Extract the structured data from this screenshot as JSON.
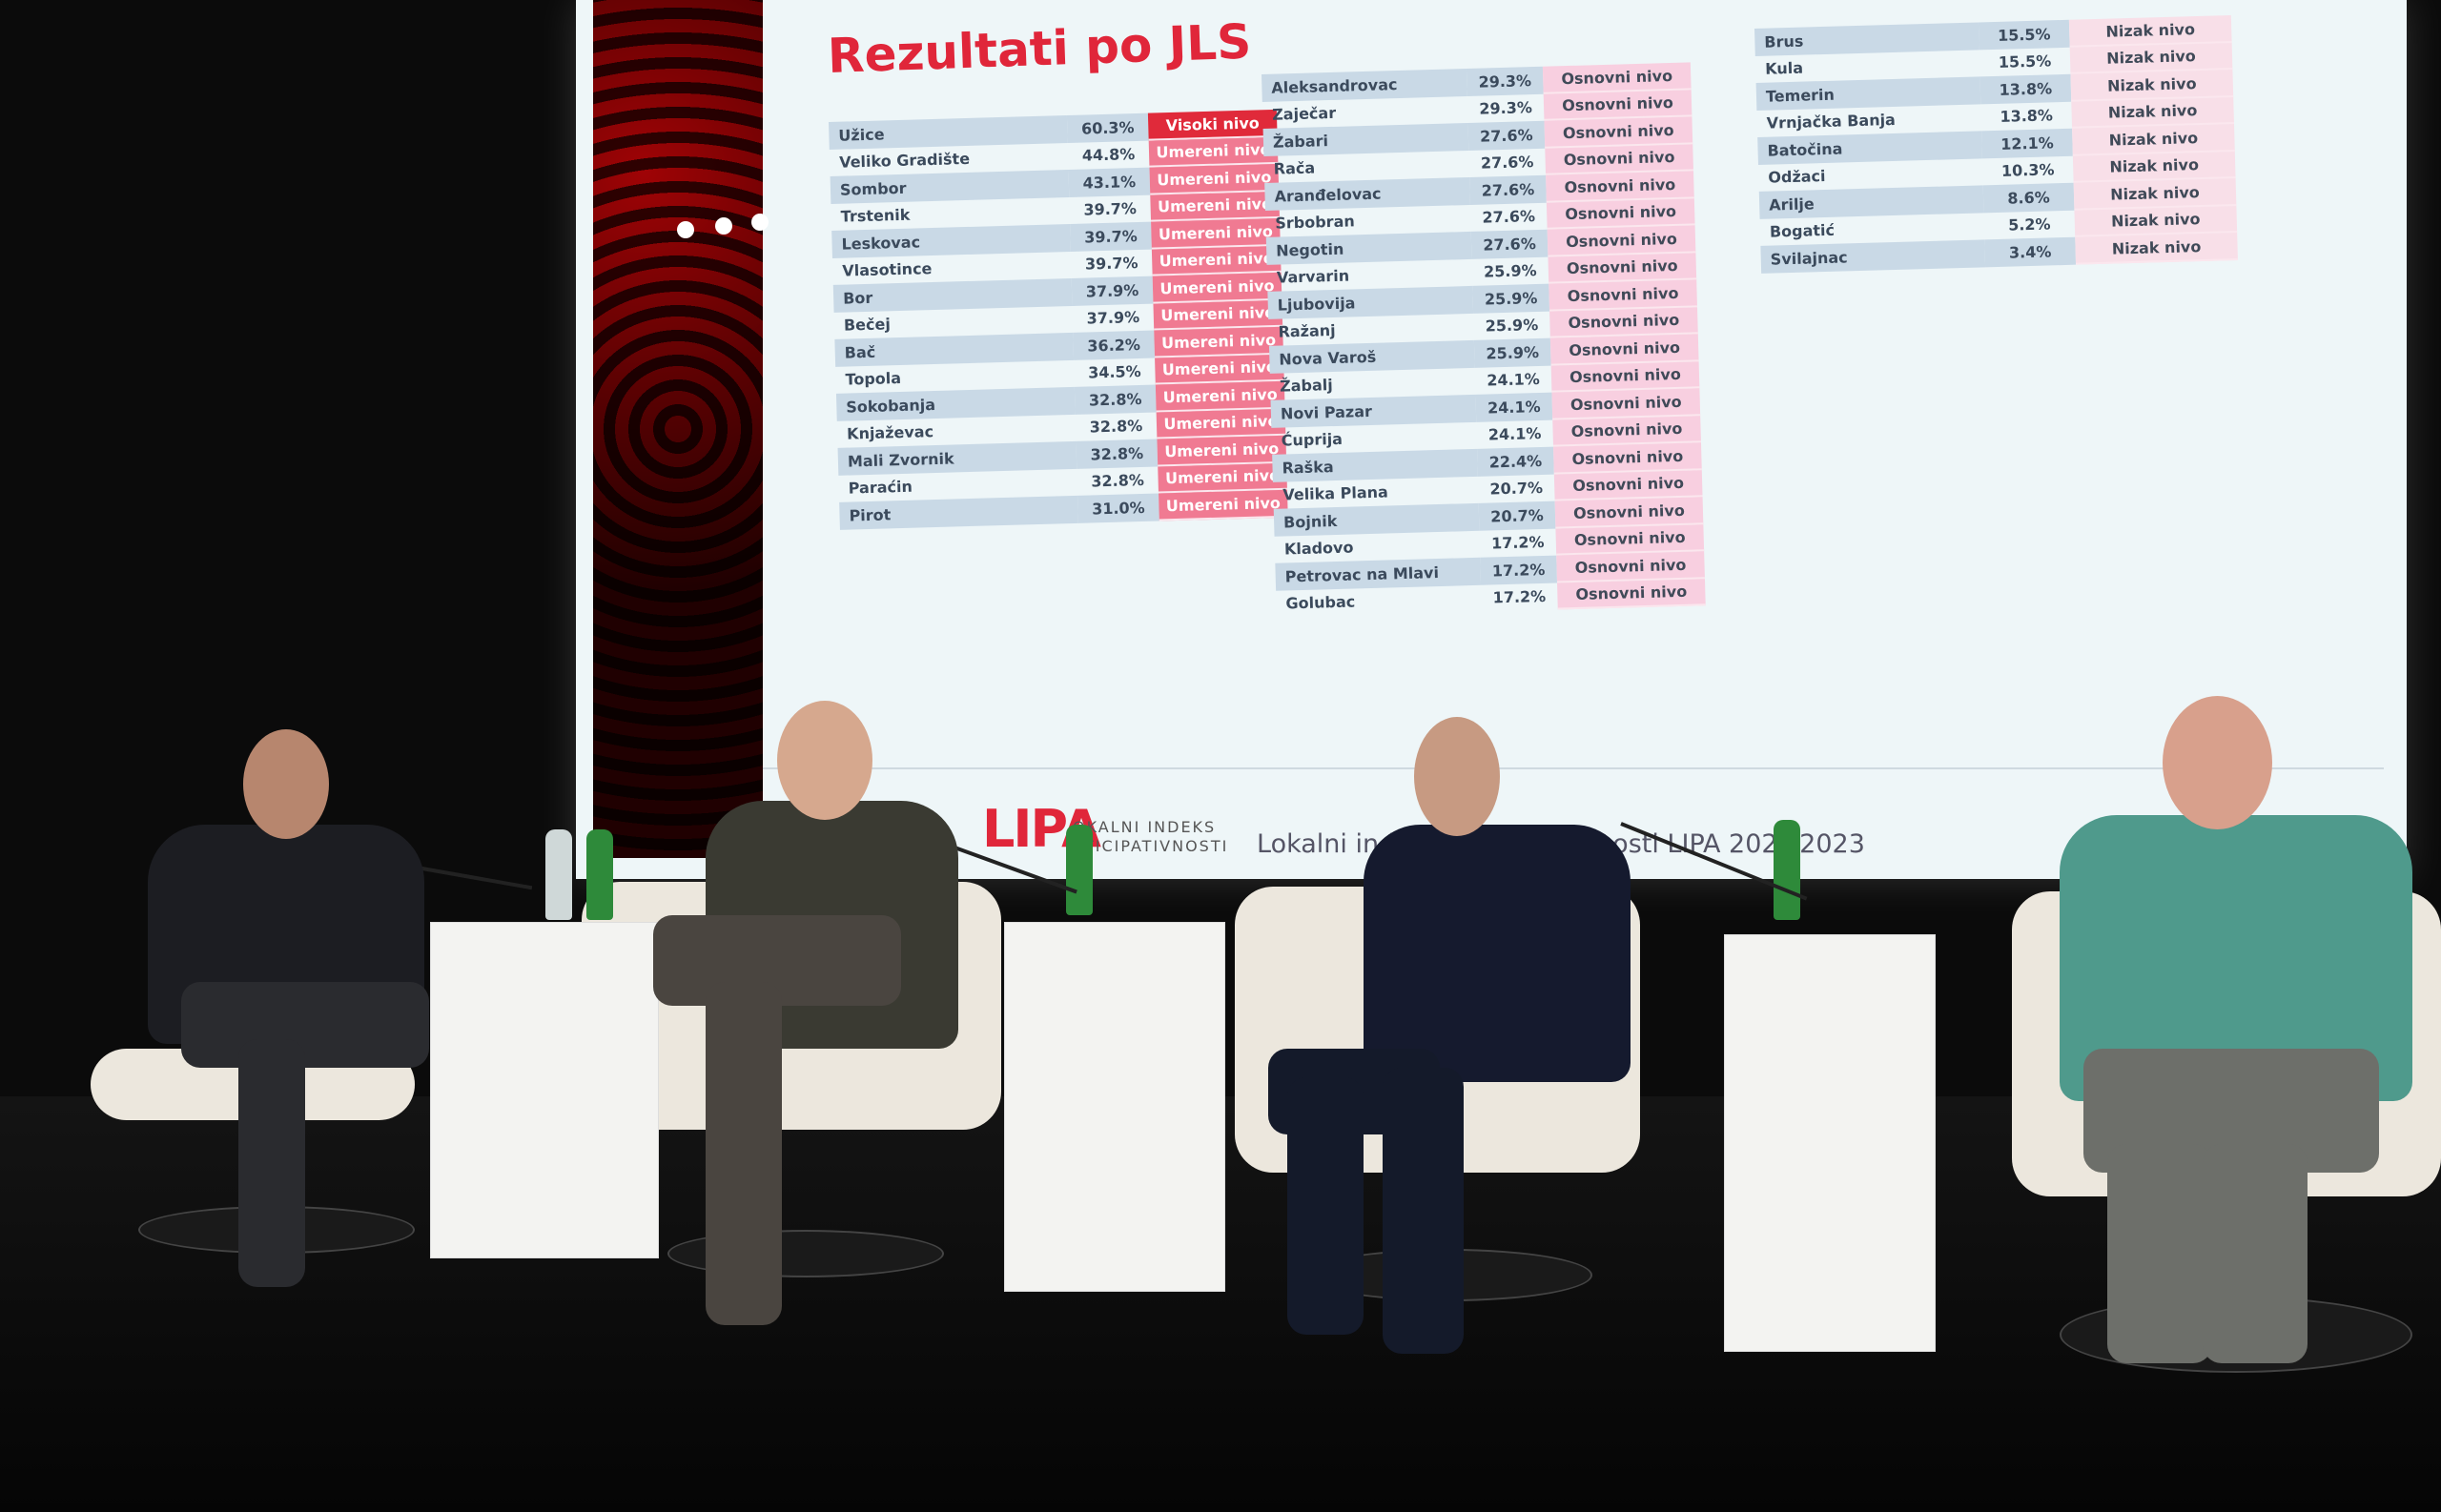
{
  "slide": {
    "title": "Rezultati po JLS",
    "table_high_moderate": [
      {
        "name": "Užice",
        "value": "60.3%",
        "level": "Visoki nivo"
      },
      {
        "name": "Veliko Gradište",
        "value": "44.8%",
        "level": "Umereni nivo"
      },
      {
        "name": "Sombor",
        "value": "43.1%",
        "level": "Umereni nivo"
      },
      {
        "name": "Trstenik",
        "value": "39.7%",
        "level": "Umereni nivo"
      },
      {
        "name": "Leskovac",
        "value": "39.7%",
        "level": "Umereni nivo"
      },
      {
        "name": "Vlasotince",
        "value": "39.7%",
        "level": "Umereni nivo"
      },
      {
        "name": "Bor",
        "value": "37.9%",
        "level": "Umereni nivo"
      },
      {
        "name": "Bečej",
        "value": "37.9%",
        "level": "Umereni nivo"
      },
      {
        "name": "Bač",
        "value": "36.2%",
        "level": "Umereni nivo"
      },
      {
        "name": "Topola",
        "value": "34.5%",
        "level": "Umereni nivo"
      },
      {
        "name": "Sokobanja",
        "value": "32.8%",
        "level": "Umereni nivo"
      },
      {
        "name": "Knjaževac",
        "value": "32.8%",
        "level": "Umereni nivo"
      },
      {
        "name": "Mali Zvornik",
        "value": "32.8%",
        "level": "Umereni nivo"
      },
      {
        "name": "Paraćin",
        "value": "32.8%",
        "level": "Umereni nivo"
      },
      {
        "name": "Pirot",
        "value": "31.0%",
        "level": "Umereni nivo"
      }
    ],
    "table_basic": [
      {
        "name": "Aleksandrovac",
        "value": "29.3%",
        "level": "Osnovni nivo"
      },
      {
        "name": "Zaječar",
        "value": "29.3%",
        "level": "Osnovni nivo"
      },
      {
        "name": "Žabari",
        "value": "27.6%",
        "level": "Osnovni nivo"
      },
      {
        "name": "Rača",
        "value": "27.6%",
        "level": "Osnovni nivo"
      },
      {
        "name": "Aranđelovac",
        "value": "27.6%",
        "level": "Osnovni nivo"
      },
      {
        "name": "Srbobran",
        "value": "27.6%",
        "level": "Osnovni nivo"
      },
      {
        "name": "Negotin",
        "value": "27.6%",
        "level": "Osnovni nivo"
      },
      {
        "name": "Varvarin",
        "value": "25.9%",
        "level": "Osnovni nivo"
      },
      {
        "name": "Ljubovija",
        "value": "25.9%",
        "level": "Osnovni nivo"
      },
      {
        "name": "Ražanj",
        "value": "25.9%",
        "level": "Osnovni nivo"
      },
      {
        "name": "Nova Varoš",
        "value": "25.9%",
        "level": "Osnovni nivo"
      },
      {
        "name": "Žabalj",
        "value": "24.1%",
        "level": "Osnovni nivo"
      },
      {
        "name": "Novi Pazar",
        "value": "24.1%",
        "level": "Osnovni nivo"
      },
      {
        "name": "Ćuprija",
        "value": "24.1%",
        "level": "Osnovni nivo"
      },
      {
        "name": "Raška",
        "value": "22.4%",
        "level": "Osnovni nivo"
      },
      {
        "name": "Velika Plana",
        "value": "20.7%",
        "level": "Osnovni nivo"
      },
      {
        "name": "Bojnik",
        "value": "20.7%",
        "level": "Osnovni nivo"
      },
      {
        "name": "Kladovo",
        "value": "17.2%",
        "level": "Osnovni nivo"
      },
      {
        "name": "Petrovac na Mlavi",
        "value": "17.2%",
        "level": "Osnovni nivo"
      },
      {
        "name": "Golubac",
        "value": "17.2%",
        "level": "Osnovni nivo"
      }
    ],
    "table_low": [
      {
        "name": "Brus",
        "value": "15.5%",
        "level": "Nizak nivo"
      },
      {
        "name": "Kula",
        "value": "15.5%",
        "level": "Nizak nivo"
      },
      {
        "name": "Temerin",
        "value": "13.8%",
        "level": "Nizak nivo"
      },
      {
        "name": "Vrnjačka Banja",
        "value": "13.8%",
        "level": "Nizak nivo"
      },
      {
        "name": "Batočina",
        "value": "12.1%",
        "level": "Nizak nivo"
      },
      {
        "name": "Odžaci",
        "value": "10.3%",
        "level": "Nizak nivo"
      },
      {
        "name": "Arilje",
        "value": "8.6%",
        "level": "Nizak nivo"
      },
      {
        "name": "Bogatić",
        "value": "5.2%",
        "level": "Nizak nivo"
      },
      {
        "name": "Svilajnac",
        "value": "3.4%",
        "level": "Nizak nivo"
      }
    ],
    "footer": {
      "logo": "LIPA",
      "logo_sub_1": "OKALNI INDEKS",
      "logo_sub_2": "RTICIPATIVNOSTI",
      "text_left": "Lokalni indeks",
      "text_right": "tivnosti LIPA 202_/2023"
    }
  },
  "colors": {
    "accent": "#e0263a",
    "moderate": "#f07a92",
    "basic": "#f8cfe0",
    "row": "#c9d9e6"
  }
}
